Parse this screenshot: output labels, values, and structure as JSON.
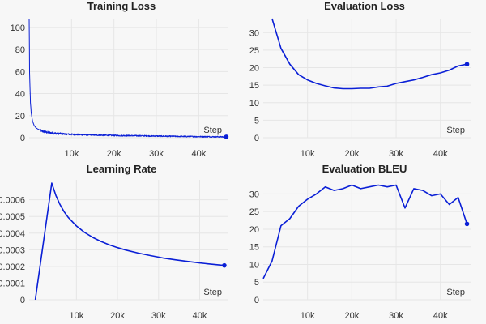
{
  "colors": {
    "line": "#0a1fd6",
    "background": "#f7f7f7"
  },
  "chart_data": [
    {
      "type": "line",
      "title": "Training Loss",
      "xlabel": "Step",
      "xlim": [
        0,
        47000
      ],
      "ylim": [
        0,
        108
      ],
      "xticks": [
        10000,
        20000,
        30000,
        40000
      ],
      "xtick_labels": [
        "10k",
        "20k",
        "30k",
        "40k"
      ],
      "yticks": [
        0,
        20,
        40,
        60,
        80,
        100
      ],
      "ytick_labels": [
        "0",
        "20",
        "40",
        "60",
        "80",
        "100"
      ],
      "grid": true,
      "noisy": true,
      "end_marker": true,
      "x": [
        0,
        100,
        200,
        300,
        500,
        800,
        1200,
        1600,
        2000,
        2500,
        3000,
        4000,
        5000,
        6000,
        8000,
        10000,
        15000,
        20000,
        25000,
        30000,
        35000,
        40000,
        46500
      ],
      "y": [
        108,
        60,
        45,
        32,
        22,
        15,
        11,
        9,
        8,
        7,
        6,
        5,
        4.5,
        4,
        3.5,
        3,
        2.5,
        2,
        1.8,
        1.5,
        1.2,
        1,
        0.8
      ]
    },
    {
      "type": "line",
      "title": "Evaluation Loss",
      "xlabel": "Step",
      "xlim": [
        0,
        47000
      ],
      "ylim": [
        0,
        34
      ],
      "xticks": [
        10000,
        20000,
        30000,
        40000
      ],
      "xtick_labels": [
        "10k",
        "20k",
        "30k",
        "40k"
      ],
      "yticks": [
        0,
        5,
        10,
        15,
        20,
        25,
        30
      ],
      "ytick_labels": [
        "0",
        "5",
        "10",
        "15",
        "20",
        "25",
        "30"
      ],
      "grid": true,
      "end_marker": true,
      "x": [
        2000,
        4000,
        6000,
        8000,
        10000,
        12000,
        14000,
        16000,
        18000,
        20000,
        22000,
        24000,
        26000,
        28000,
        30000,
        32000,
        34000,
        36000,
        38000,
        40000,
        42000,
        44000,
        46000
      ],
      "y": [
        34,
        25.5,
        21,
        18,
        16.5,
        15.5,
        14.8,
        14.2,
        14,
        14,
        14.1,
        14.1,
        14.5,
        14.7,
        15.5,
        16,
        16.5,
        17.2,
        18,
        18.5,
        19.3,
        20.5,
        21
      ]
    },
    {
      "type": "line",
      "title": "Learning Rate",
      "xlabel": "Step",
      "xlim": [
        -1500,
        47000
      ],
      "ylim": [
        0,
        0.00072
      ],
      "xticks": [
        10000,
        20000,
        30000,
        40000
      ],
      "xtick_labels": [
        "10k",
        "20k",
        "30k",
        "40k"
      ],
      "yticks": [
        0,
        0.0001,
        0.0002,
        0.0003,
        0.0004,
        0.0005,
        0.0006
      ],
      "ytick_labels": [
        "0",
        "0.0001",
        "0.0002",
        "0.0003",
        "0.0004",
        "0.0005",
        "0.0006"
      ],
      "grid": true,
      "end_marker": true,
      "x": [
        0,
        4000,
        5000,
        6000,
        7000,
        8000,
        10000,
        12000,
        14000,
        16000,
        18000,
        20000,
        22000,
        25000,
        28000,
        31000,
        34000,
        37000,
        40000,
        43000,
        46000
      ],
      "y": [
        0,
        0.0007,
        0.000626,
        0.000572,
        0.000529,
        0.000495,
        0.000443,
        0.000404,
        0.000374,
        0.00035,
        0.00033,
        0.000313,
        0.000298,
        0.00028,
        0.000265,
        0.000251,
        0.00024,
        0.00023,
        0.000221,
        0.000213,
        0.000206
      ]
    },
    {
      "type": "line",
      "title": "Evaluation BLEU",
      "xlabel": "Step",
      "xlim": [
        0,
        47000
      ],
      "ylim": [
        0,
        34
      ],
      "xticks": [
        10000,
        20000,
        30000,
        40000
      ],
      "xtick_labels": [
        "10k",
        "20k",
        "30k",
        "40k"
      ],
      "yticks": [
        0,
        5,
        10,
        15,
        20,
        25,
        30
      ],
      "ytick_labels": [
        "0",
        "5",
        "10",
        "15",
        "20",
        "25",
        "30"
      ],
      "grid": true,
      "end_marker": true,
      "x": [
        0,
        2000,
        4000,
        6000,
        8000,
        10000,
        12000,
        14000,
        16000,
        18000,
        20000,
        22000,
        24000,
        26000,
        28000,
        30000,
        32000,
        34000,
        36000,
        38000,
        40000,
        42000,
        44000,
        46000
      ],
      "y": [
        6,
        11,
        21,
        23,
        26.5,
        28.5,
        30,
        32,
        31,
        31.5,
        32.5,
        31.5,
        32,
        32.5,
        32,
        32.5,
        26,
        31.5,
        31,
        29.5,
        30,
        27,
        29,
        21.5
      ]
    }
  ]
}
